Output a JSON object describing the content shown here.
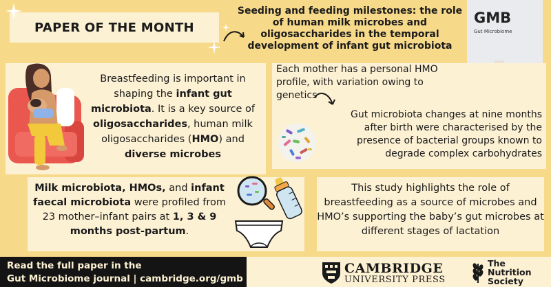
{
  "header": {
    "label": "PAPER OF THE MONTH",
    "title": "Seeding and feeding milestones: the role of human milk microbes and oligosaccharides in the temporal development of infant gut microbiota"
  },
  "journal_cover": {
    "abbrev": "GMB",
    "name": "Gut Microbiome"
  },
  "panels": {
    "breastfeeding": {
      "parts": [
        {
          "text": "Breastfeeding is important in shaping the ",
          "bold": false
        },
        {
          "text": "infant gut microbiota",
          "bold": true
        },
        {
          "text": ". It is a key source of ",
          "bold": false
        },
        {
          "text": "oligosaccharides",
          "bold": true
        },
        {
          "text": ", human milk oligosaccharides (",
          "bold": false
        },
        {
          "text": "HMO",
          "bold": true
        },
        {
          "text": ") and ",
          "bold": false
        },
        {
          "text": "diverse microbes",
          "bold": true
        }
      ]
    },
    "hmo_profile": {
      "text": "Each mother has a personal HMO profile, with variation owing to genetics"
    },
    "nine_months": {
      "text": "Gut microbiota changes at nine months after birth were characterised by the presence of bacterial groups known to degrade complex carbohydrates"
    },
    "methods": {
      "parts": [
        {
          "text": "Milk microbiota, HMOs,",
          "bold": true
        },
        {
          "text": " and ",
          "bold": false
        },
        {
          "text": "infant faecal microbiota",
          "bold": true
        },
        {
          "text": " were profiled from 23 mother–infant pairs at ",
          "bold": false
        },
        {
          "text": "1, 3 & 9 months post-partum",
          "bold": true
        },
        {
          "text": ".",
          "bold": false
        }
      ]
    },
    "conclusion": {
      "text": "This study highlights the role of breastfeeding as a source of microbes and HMO’s supporting the baby’s gut microbes at different stages of lactation"
    }
  },
  "footer": {
    "line1": "Read the full paper in the",
    "line2": "Gut Microbiome journal | cambridge.org/gmb",
    "cambridge_line1": "CAMBRIDGE",
    "cambridge_line2": "UNIVERSITY PRESS",
    "nutrition_society": [
      "The",
      "Nutrition",
      "Society"
    ]
  },
  "colors": {
    "background": "#f7d98a",
    "panel": "#fdf1d4",
    "footer_dark": "#141414",
    "mother_hair": "#4a2e27",
    "chair": "#e9574f",
    "pants": "#f2c93a"
  }
}
